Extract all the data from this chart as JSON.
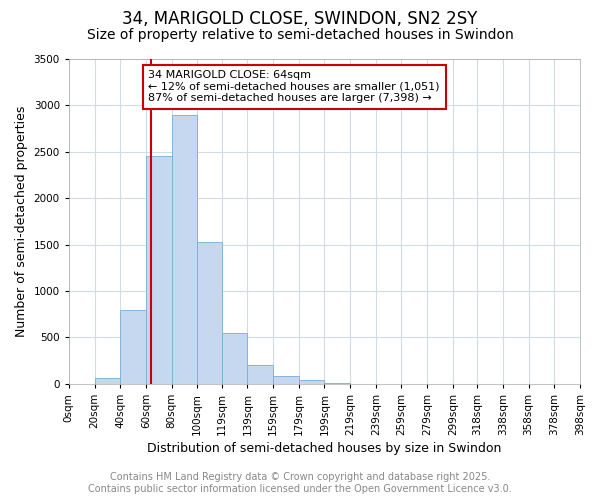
{
  "title": "34, MARIGOLD CLOSE, SWINDON, SN2 2SY",
  "subtitle": "Size of property relative to semi-detached houses in Swindon",
  "xlabel": "Distribution of semi-detached houses by size in Swindon",
  "ylabel": "Number of semi-detached properties",
  "bin_edges": [
    0,
    20,
    40,
    60,
    80,
    100,
    119,
    139,
    159,
    179,
    199,
    219,
    239,
    259,
    279,
    299,
    318,
    338,
    358,
    378,
    398
  ],
  "bin_labels": [
    "0sqm",
    "20sqm",
    "40sqm",
    "60sqm",
    "80sqm",
    "100sqm",
    "119sqm",
    "139sqm",
    "159sqm",
    "179sqm",
    "199sqm",
    "219sqm",
    "239sqm",
    "259sqm",
    "279sqm",
    "299sqm",
    "318sqm",
    "338sqm",
    "358sqm",
    "378sqm",
    "398sqm"
  ],
  "counts": [
    0,
    60,
    800,
    2450,
    2900,
    1530,
    550,
    200,
    90,
    40,
    5,
    0,
    0,
    0,
    0,
    0,
    0,
    0,
    0,
    0
  ],
  "bar_color": "#c5d8f0",
  "bar_edge_color": "#7aadd4",
  "property_size": 64,
  "vline_color": "#cc0000",
  "ann_line1": "34 MARIGOLD CLOSE: 64sqm",
  "ann_line2": "← 12% of semi-detached houses are smaller (1,051)",
  "ann_line3": "87% of semi-detached houses are larger (7,398) →",
  "annotation_box_color": "#cc0000",
  "ylim": [
    0,
    3500
  ],
  "yticks": [
    0,
    500,
    1000,
    1500,
    2000,
    2500,
    3000,
    3500
  ],
  "bg_color": "#ffffff",
  "plot_bg_color": "#ffffff",
  "grid_color": "#d0dce8",
  "footer_line1": "Contains HM Land Registry data © Crown copyright and database right 2025.",
  "footer_line2": "Contains public sector information licensed under the Open Government Licence v3.0.",
  "title_fontsize": 12,
  "subtitle_fontsize": 10,
  "label_fontsize": 9,
  "tick_fontsize": 7.5,
  "footer_fontsize": 7,
  "ann_fontsize": 8
}
